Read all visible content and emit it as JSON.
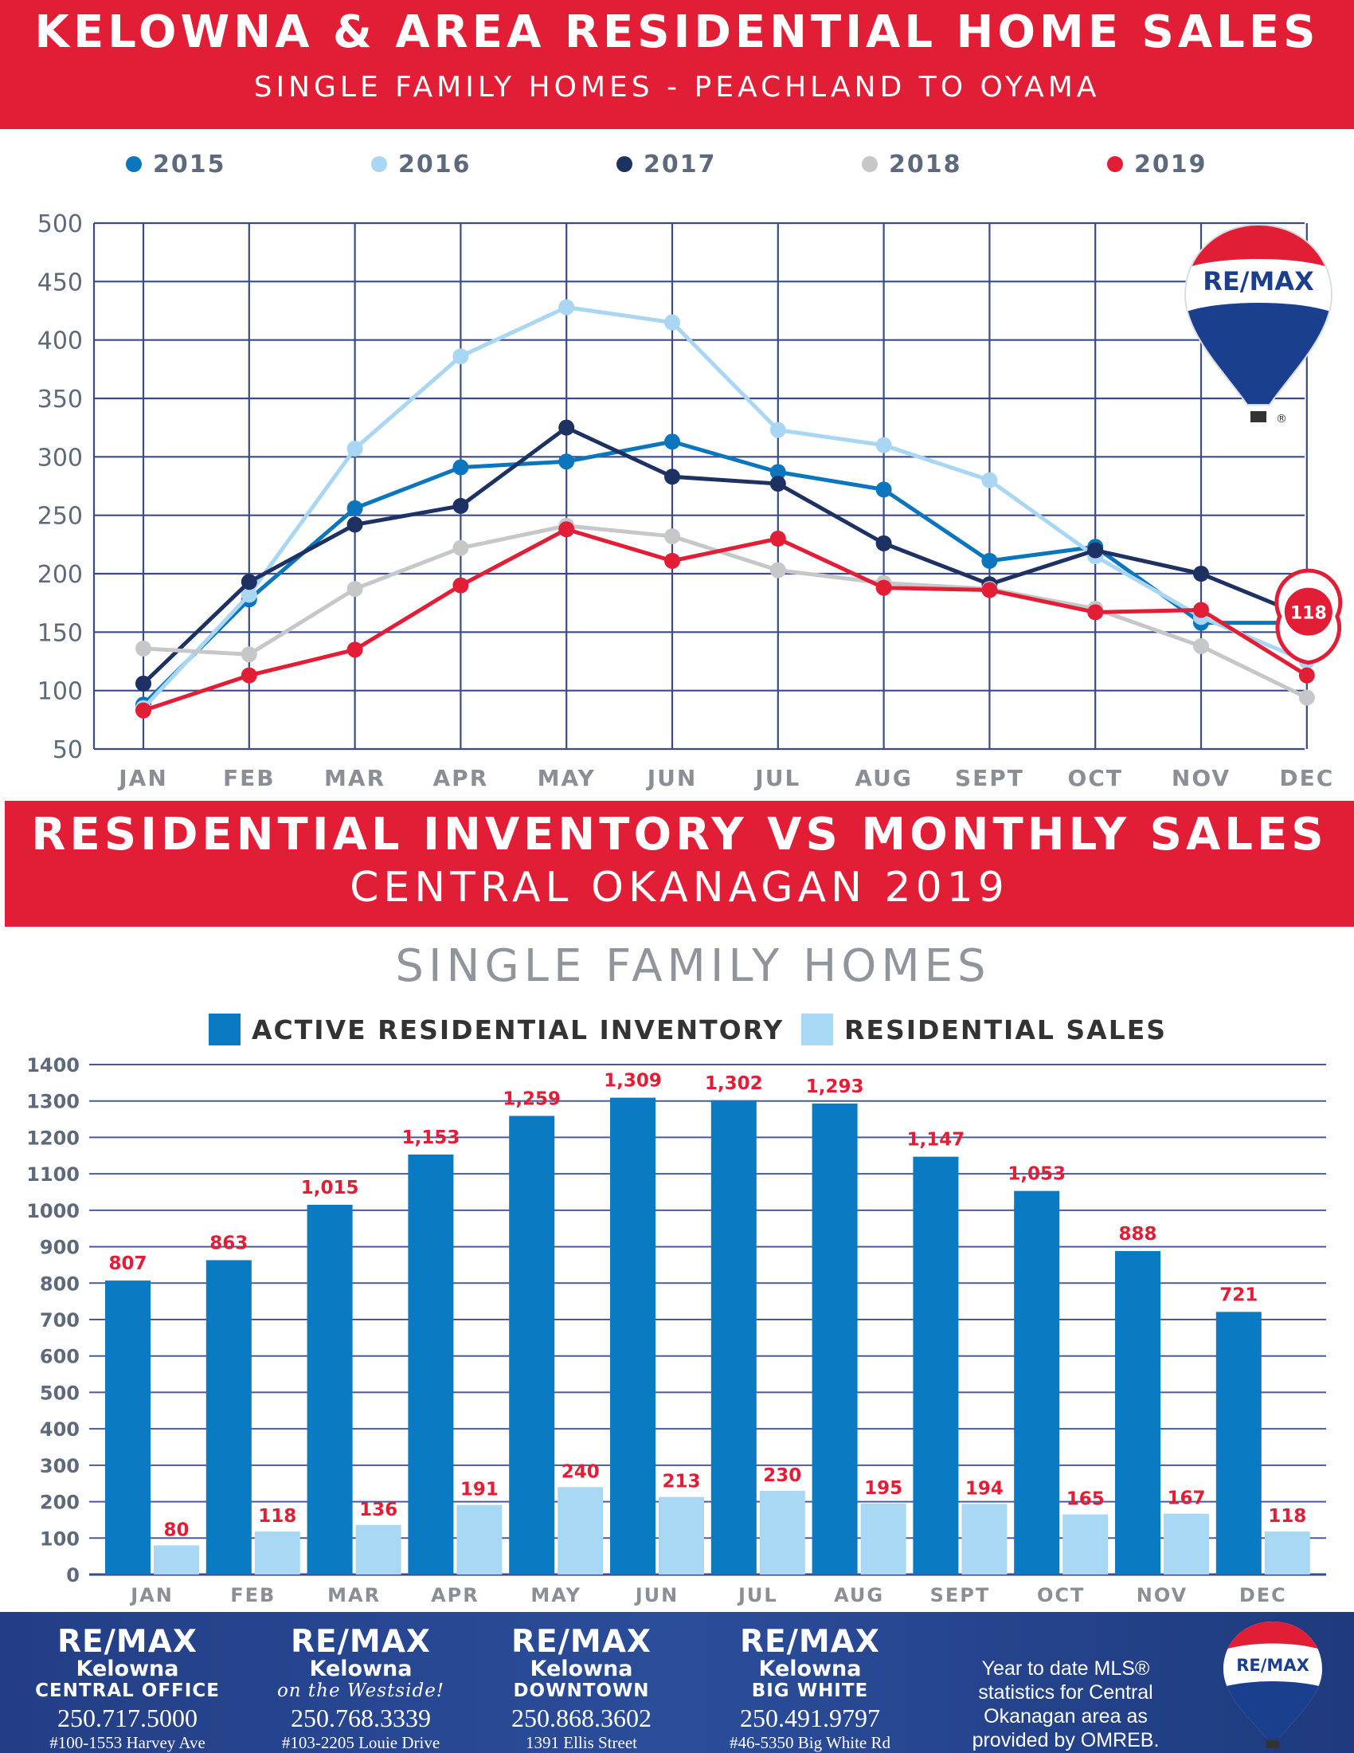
{
  "header": {
    "title": "KELOWNA & AREA RESIDENTIAL HOME SALES",
    "subtitle": "SINGLE FAMILY HOMES - PEACHLAND TO OYAMA"
  },
  "section2": {
    "title_line1": "RESIDENTIAL INVENTORY VS MONTHLY SALES",
    "title_line2": "CENTRAL OKANAGAN 2019",
    "subtitle": "SINGLE FAMILY HOMES"
  },
  "brand": {
    "logo_text": "RE/MAX",
    "registered": "®"
  },
  "pin_label": "118",
  "colors": {
    "banner_red": "#e21e36",
    "s2015": "#0b76be",
    "s2016": "#a8d6f3",
    "s2017": "#1d3263",
    "s2018": "#c5c7c9",
    "s2019": "#e21e36",
    "inventory": "#0a7ac3",
    "sales": "#a9d8f4",
    "footer_blue": "#2b4d9a"
  },
  "chart_data": [
    {
      "type": "line",
      "categories": [
        "JAN",
        "FEB",
        "MAR",
        "APR",
        "MAY",
        "JUN",
        "JUL",
        "AUG",
        "SEPT",
        "OCT",
        "NOV",
        "DEC"
      ],
      "ylim": [
        50,
        500
      ],
      "yticks": [
        50,
        100,
        150,
        200,
        250,
        300,
        350,
        400,
        450,
        500
      ],
      "grid": true,
      "legend_position": "top",
      "series": [
        {
          "name": "2015",
          "color": "#0b76be",
          "values": [
            88,
            178,
            256,
            291,
            296,
            313,
            287,
            272,
            211,
            223,
            158,
            158
          ]
        },
        {
          "name": "2016",
          "color": "#a8d6f3",
          "values": [
            85,
            182,
            307,
            386,
            428,
            415,
            323,
            310,
            280,
            215,
            163,
            125
          ]
        },
        {
          "name": "2017",
          "color": "#1d3263",
          "values": [
            106,
            193,
            242,
            258,
            325,
            283,
            277,
            226,
            191,
            220,
            200,
            163
          ]
        },
        {
          "name": "2018",
          "color": "#c5c7c9",
          "values": [
            136,
            131,
            187,
            222,
            241,
            232,
            203,
            192,
            187,
            170,
            138,
            94
          ]
        },
        {
          "name": "2019",
          "color": "#e21e36",
          "values": [
            83,
            113,
            135,
            190,
            238,
            211,
            230,
            188,
            186,
            167,
            169,
            113
          ]
        }
      ]
    },
    {
      "type": "bar",
      "categories": [
        "JAN",
        "FEB",
        "MAR",
        "APR",
        "MAY",
        "JUN",
        "JUL",
        "AUG",
        "SEPT",
        "OCT",
        "NOV",
        "DEC"
      ],
      "ylim": [
        0,
        1400
      ],
      "yticks": [
        0,
        100,
        200,
        300,
        400,
        500,
        600,
        700,
        800,
        900,
        1000,
        1100,
        1200,
        1300,
        1400
      ],
      "legend_position": "top",
      "series": [
        {
          "name": "ACTIVE RESIDENTIAL INVENTORY",
          "color": "#0a7ac3",
          "values": [
            807,
            863,
            1015,
            1153,
            1259,
            1309,
            1302,
            1293,
            1147,
            1053,
            888,
            721
          ],
          "labels": [
            "807",
            "863",
            "1,015",
            "1,153",
            "1,259",
            "1,309",
            "1,302",
            "1,293",
            "1,147",
            "1,053",
            "888",
            "721"
          ]
        },
        {
          "name": "RESIDENTIAL SALES",
          "color": "#a9d8f4",
          "values": [
            80,
            118,
            136,
            191,
            240,
            213,
            230,
            195,
            194,
            165,
            167,
            118
          ],
          "labels": [
            "80",
            "118",
            "136",
            "191",
            "240",
            "213",
            "230",
            "195",
            "194",
            "165",
            "167",
            "118"
          ]
        }
      ]
    }
  ],
  "footer": {
    "offices": [
      {
        "brand": "RE/MAX",
        "city": "Kelowna",
        "sub": "CENTRAL OFFICE",
        "phone": "250.717.5000",
        "address": "#100-1553 Harvey Ave"
      },
      {
        "brand": "RE/MAX",
        "city": "Kelowna",
        "sub": "on the Westside!",
        "phone": "250.768.3339",
        "address": "#103-2205 Louie Drive"
      },
      {
        "brand": "RE/MAX",
        "city": "Kelowna",
        "sub": "DOWNTOWN",
        "phone": "250.868.3602",
        "address": "1391 Ellis Street"
      },
      {
        "brand": "RE/MAX",
        "city": "Kelowna",
        "sub": "BIG WHITE",
        "phone": "250.491.9797",
        "address": "#46-5350 Big White Rd"
      }
    ],
    "note": "Year to date MLS® statistics for Central Okanagan area as provided by OMREB."
  }
}
